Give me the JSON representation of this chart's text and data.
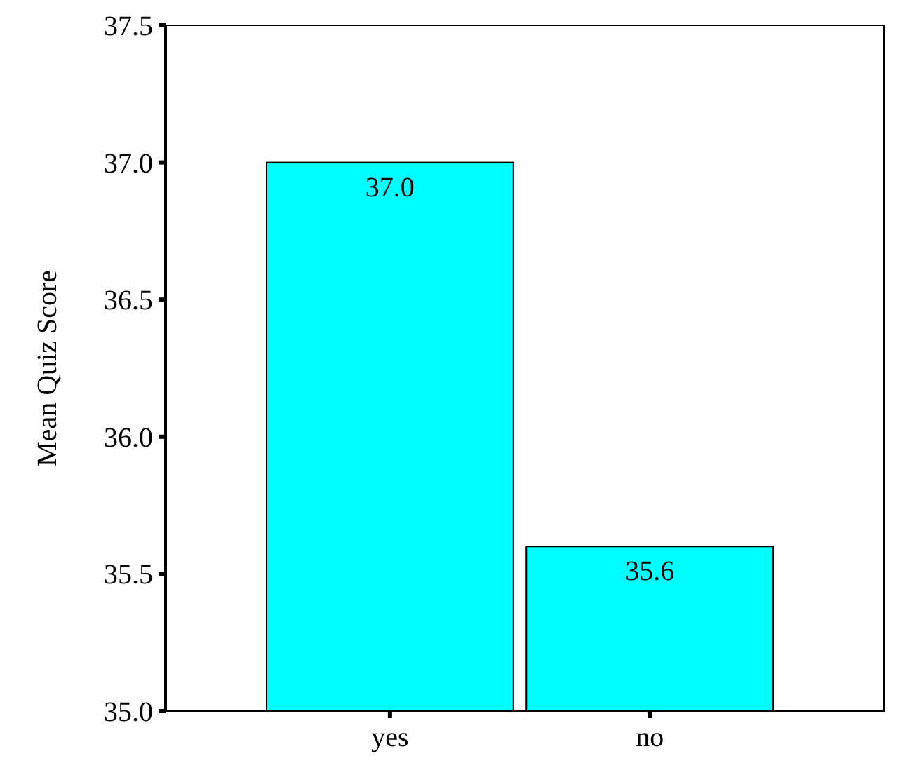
{
  "chart_data": {
    "type": "bar",
    "ylabel": "Mean Quiz Score",
    "categories": [
      "yes",
      "no"
    ],
    "values": [
      37.0,
      35.6
    ],
    "color": "#00ffff",
    "ylim": [
      35.0,
      37.5
    ],
    "yticks": [
      {
        "value": 35,
        "label": "35.0"
      },
      {
        "value": 35.5,
        "label": "35.5"
      },
      {
        "value": 36,
        "label": "36.0"
      },
      {
        "value": 36.5,
        "label": "36.5"
      },
      {
        "value": 37,
        "label": "37.0"
      },
      {
        "value": 37.5,
        "label": "37.5"
      }
    ],
    "value_labels": [
      "37.0",
      "35.6"
    ],
    "grid": false
  }
}
